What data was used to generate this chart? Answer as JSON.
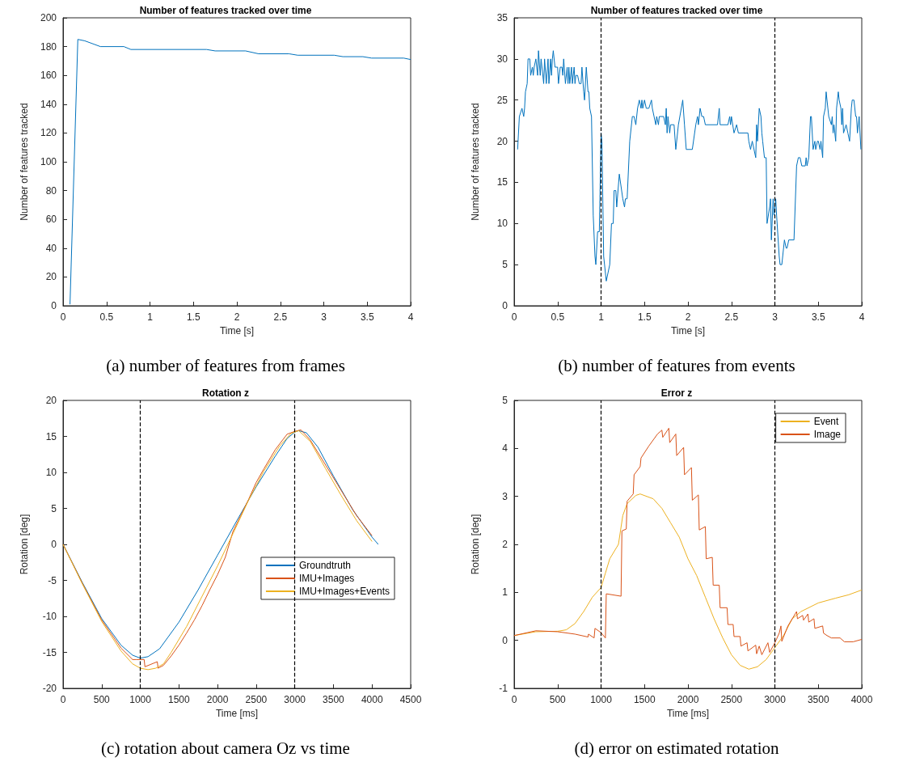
{
  "chart_data": [
    {
      "type": "line",
      "title": "Number of features tracked over time",
      "xlabel": "Time [s]",
      "ylabel": "Number of features tracked",
      "annotations": [
        "(a) number of features from frames"
      ],
      "xlim": [
        0,
        4
      ],
      "xticks": [
        0,
        0.5,
        1,
        1.5,
        2,
        2.5,
        3,
        3.5,
        4
      ],
      "ylim": [
        0,
        200
      ],
      "yticks": [
        0,
        20,
        40,
        60,
        80,
        100,
        120,
        140,
        160,
        180,
        200
      ],
      "series": [
        {
          "color": "#0072bd",
          "x": [
            0.08,
            0.17,
            0.25,
            0.43,
            0.7,
            0.78,
            1.65,
            1.75,
            2.1,
            2.25,
            2.6,
            2.7,
            3.12,
            3.22,
            3.45,
            3.55,
            3.92,
            4
          ],
          "values": [
            1,
            185,
            184,
            180,
            180,
            178,
            178,
            177,
            177,
            175,
            175,
            174,
            174,
            173,
            173,
            172,
            172,
            171
          ]
        }
      ]
    },
    {
      "type": "line",
      "title": "Number of features tracked over time",
      "xlabel": "Time [s]",
      "ylabel": "Number of features tracked",
      "annotations": [
        "(b) number of features from events"
      ],
      "xlim": [
        0,
        4
      ],
      "xticks": [
        0,
        0.5,
        1,
        1.5,
        2,
        2.5,
        3,
        3.5,
        4
      ],
      "ylim": [
        0,
        35
      ],
      "yticks": [
        0,
        5,
        10,
        15,
        20,
        25,
        30,
        35
      ],
      "ref_lines": [
        {
          "axis": "x",
          "value": 1,
          "color": "#000000",
          "line_style": "dashed"
        },
        {
          "axis": "x",
          "value": 3,
          "color": "#000000",
          "line_style": "dashed"
        }
      ],
      "series": [
        {
          "color": "#0072bd",
          "x": [
            0.04,
            0.06,
            0.09,
            0.11,
            0.12,
            0.13,
            0.15,
            0.16,
            0.18,
            0.19,
            0.21,
            0.22,
            0.23,
            0.25,
            0.27,
            0.28,
            0.3,
            0.31,
            0.34,
            0.35,
            0.37,
            0.39,
            0.4,
            0.42,
            0.43,
            0.44,
            0.45,
            0.47,
            0.5,
            0.51,
            0.53,
            0.55,
            0.56,
            0.57,
            0.59,
            0.61,
            0.62,
            0.63,
            0.64,
            0.66,
            0.67,
            0.69,
            0.7,
            0.71,
            0.73,
            0.75,
            0.77,
            0.78,
            0.8,
            0.81,
            0.83,
            0.85,
            0.86,
            0.87,
            0.89,
            0.91,
            0.93,
            0.94,
            0.96,
            0.98,
            1.0,
            1.01,
            1.03,
            1.04,
            1.06,
            1.1,
            1.12,
            1.14,
            1.15,
            1.17,
            1.18,
            1.21,
            1.25,
            1.27,
            1.28,
            1.3,
            1.33,
            1.36,
            1.38,
            1.4,
            1.42,
            1.44,
            1.46,
            1.47,
            1.48,
            1.5,
            1.52,
            1.55,
            1.58,
            1.59,
            1.61,
            1.63,
            1.64,
            1.66,
            1.67,
            1.72,
            1.74,
            1.75,
            1.76,
            1.77,
            1.79,
            1.8,
            1.84,
            1.86,
            1.89,
            1.94,
            1.96,
            1.98,
            2.05,
            2.09,
            2.11,
            2.12,
            2.14,
            2.16,
            2.18,
            2.2,
            2.34,
            2.36,
            2.37,
            2.46,
            2.48,
            2.49,
            2.5,
            2.53,
            2.56,
            2.58,
            2.69,
            2.7,
            2.72,
            2.74,
            2.78,
            2.79,
            2.8,
            2.82,
            2.84,
            2.85,
            2.86,
            2.88,
            2.9,
            2.91,
            2.94,
            2.95,
            2.96,
            2.98,
            2.99,
            3.01,
            3.02,
            3.05,
            3.06,
            3.08,
            3.11,
            3.13,
            3.14,
            3.16,
            3.22,
            3.25,
            3.27,
            3.29,
            3.31,
            3.35,
            3.36,
            3.37,
            3.39,
            3.41,
            3.42,
            3.44,
            3.46,
            3.47,
            3.49,
            3.5,
            3.52,
            3.53,
            3.55,
            3.56,
            3.58,
            3.59,
            3.61,
            3.62,
            3.65,
            3.66,
            3.67,
            3.68,
            3.7,
            3.71,
            3.73,
            3.74,
            3.76,
            3.77,
            3.78,
            3.79,
            3.82,
            3.84,
            3.86,
            3.88,
            3.89,
            3.91,
            3.93,
            3.94,
            3.95,
            3.97,
            3.99
          ],
          "values": [
            19,
            23,
            24,
            23,
            24,
            26,
            27,
            30,
            30,
            28,
            29,
            28,
            29,
            30,
            28,
            31,
            28,
            30,
            27,
            30,
            27,
            30,
            27,
            30,
            28,
            30,
            31,
            29,
            29,
            27,
            29,
            29,
            28,
            30,
            27,
            29,
            27,
            29,
            27,
            29,
            27,
            29,
            27,
            28,
            28,
            27,
            27,
            29,
            26,
            25,
            29,
            26,
            26,
            24,
            23,
            11,
            6,
            5,
            9,
            9,
            21,
            20,
            6,
            5,
            3,
            5,
            10,
            10,
            14,
            14,
            12,
            16,
            13,
            12,
            13,
            13,
            20,
            23,
            23,
            22,
            24,
            25,
            24,
            25,
            24,
            25,
            24,
            24,
            25,
            24,
            23,
            22,
            23,
            22,
            23,
            23,
            22,
            24,
            21,
            23,
            21,
            22,
            22,
            19,
            22,
            25,
            22,
            19,
            19,
            22,
            23,
            22,
            24,
            23,
            23,
            22,
            22,
            24,
            22,
            22,
            23,
            22,
            23,
            21,
            22,
            21,
            21,
            20,
            19,
            20,
            18,
            22,
            20,
            24,
            23,
            21,
            20,
            18,
            18,
            10,
            12,
            13,
            8,
            13,
            11,
            13,
            11,
            6,
            5,
            5,
            8,
            7,
            7,
            8,
            8,
            17,
            18,
            18,
            17,
            17,
            18,
            17,
            18,
            23,
            23,
            19,
            20,
            19,
            20,
            20,
            19,
            20,
            18,
            23,
            24,
            26,
            24,
            23,
            22,
            23,
            21,
            22,
            20,
            24,
            26,
            25,
            24,
            22,
            24,
            21,
            22,
            21,
            20,
            24,
            25,
            25,
            23,
            23,
            21,
            23,
            19
          ]
        }
      ]
    },
    {
      "type": "line",
      "title": "Rotation z",
      "xlabel": "Time [ms]",
      "ylabel": "Rotation [deg]",
      "annotations": [
        "(c) rotation about camera Oz vs time"
      ],
      "xlim": [
        0,
        4500
      ],
      "xticks": [
        0,
        500,
        1000,
        1500,
        2000,
        2500,
        3000,
        3500,
        4000,
        4500
      ],
      "ylim": [
        -20,
        20
      ],
      "yticks": [
        -20,
        -15,
        -10,
        -5,
        0,
        5,
        10,
        15,
        20
      ],
      "legend": "bottom right",
      "ref_lines": [
        {
          "axis": "x",
          "value": 1000,
          "color": "#000000",
          "line_style": "dashed"
        },
        {
          "axis": "x",
          "value": 3000,
          "color": "#000000",
          "line_style": "dashed"
        }
      ],
      "series": [
        {
          "name": "Groundtruth",
          "color": "#0072bd",
          "x": [
            0,
            250,
            500,
            750,
            900,
            1000,
            1100,
            1250,
            1500,
            1750,
            2000,
            2250,
            2500,
            2750,
            2900,
            3000,
            3050,
            3150,
            3300,
            3500,
            3750,
            4000,
            4080
          ],
          "values": [
            0,
            -5.3,
            -10.3,
            -14,
            -15.4,
            -15.8,
            -15.6,
            -14.5,
            -10.8,
            -6.3,
            -1.5,
            3.3,
            8,
            12.3,
            14.7,
            15.6,
            15.8,
            15.5,
            13.5,
            9.5,
            4.8,
            1,
            0
          ]
        },
        {
          "name": "IMU+Images",
          "color": "#d95319",
          "x": [
            0,
            250,
            500,
            750,
            900,
            950,
            1050,
            1060,
            1220,
            1230,
            1300,
            1400,
            1500,
            1600,
            1700,
            1800,
            1900,
            2000,
            2100,
            2200,
            2300,
            2400,
            2500,
            2600,
            2750,
            2900,
            3000,
            3080,
            3200,
            3400,
            3600,
            3800,
            4000
          ],
          "values": [
            0,
            -5.4,
            -10.5,
            -14.4,
            -16,
            -16,
            -16,
            -17,
            -16.3,
            -17.2,
            -16.8,
            -15.5,
            -14,
            -12.3,
            -10.5,
            -8.5,
            -6.3,
            -4.2,
            -1.8,
            1.8,
            4,
            6.2,
            8.6,
            10.5,
            13.2,
            15.3,
            15.7,
            15.9,
            14.5,
            11,
            7.5,
            4,
            1.2
          ]
        },
        {
          "name": "IMU+Images+Events",
          "color": "#edb120",
          "x": [
            0,
            250,
            500,
            750,
            900,
            1000,
            1100,
            1200,
            1300,
            1400,
            1600,
            1800,
            2000,
            2200,
            2400,
            2600,
            2800,
            2950,
            3050,
            3200,
            3400,
            3600,
            3800,
            4000
          ],
          "values": [
            0,
            -5.5,
            -10.7,
            -14.8,
            -16.6,
            -17.2,
            -17.4,
            -17.2,
            -16.6,
            -15,
            -11.4,
            -7.2,
            -3,
            1.5,
            6.1,
            10.2,
            13.6,
            15.4,
            15.8,
            14.3,
            10.5,
            6.8,
            3.3,
            0.4
          ]
        }
      ]
    },
    {
      "type": "line",
      "title": "Error z",
      "xlabel": "Time [ms]",
      "ylabel": "Rotation [deg]",
      "annotations": [
        "(d) error on estimated rotation"
      ],
      "xlim": [
        0,
        4000
      ],
      "xticks": [
        0,
        500,
        1000,
        1500,
        2000,
        2500,
        3000,
        3500,
        4000
      ],
      "ylim": [
        -1,
        5
      ],
      "yticks": [
        -1,
        0,
        1,
        2,
        3,
        4,
        5
      ],
      "legend": "top right",
      "ref_lines": [
        {
          "axis": "x",
          "value": 1000,
          "color": "#000000",
          "line_style": "dashed"
        },
        {
          "axis": "x",
          "value": 3000,
          "color": "#000000",
          "line_style": "dashed"
        }
      ],
      "series": [
        {
          "name": "Event",
          "color": "#edb120",
          "x": [
            0,
            250,
            500,
            600,
            700,
            800,
            900,
            1000,
            1050,
            1100,
            1200,
            1250,
            1300,
            1400,
            1450,
            1600,
            1700,
            1800,
            1900,
            2000,
            2100,
            2200,
            2300,
            2400,
            2500,
            2600,
            2700,
            2800,
            2900,
            3000,
            3100,
            3200,
            3300,
            3500,
            3700,
            3850,
            4000
          ],
          "values": [
            0.1,
            0.18,
            0.19,
            0.22,
            0.35,
            0.6,
            0.9,
            1.1,
            1.4,
            1.7,
            2,
            2.6,
            2.85,
            3.02,
            3.05,
            2.95,
            2.75,
            2.45,
            2.15,
            1.7,
            1.35,
            0.9,
            0.45,
            0.05,
            -0.3,
            -0.52,
            -0.6,
            -0.55,
            -0.4,
            -0.15,
            0.1,
            0.45,
            0.6,
            0.78,
            0.88,
            0.95,
            1.05
          ]
        },
        {
          "name": "Image",
          "color": "#d95319",
          "x": [
            0,
            250,
            500,
            700,
            850,
            855,
            920,
            930,
            1000,
            1050,
            1060,
            1230,
            1240,
            1290,
            1300,
            1370,
            1380,
            1450,
            1460,
            1550,
            1650,
            1700,
            1710,
            1780,
            1790,
            1860,
            1870,
            1950,
            1960,
            2040,
            2050,
            2120,
            2130,
            2200,
            2210,
            2280,
            2290,
            2360,
            2370,
            2450,
            2460,
            2520,
            2530,
            2600,
            2610,
            2680,
            2690,
            2780,
            2790,
            2820,
            2850,
            2920,
            2940,
            3000,
            3050,
            3070,
            3080,
            3150,
            3250,
            3260,
            3320,
            3330,
            3380,
            3390,
            3450,
            3460,
            3550,
            3560,
            3600,
            3650,
            3750,
            3800,
            3900,
            4000
          ],
          "values": [
            0.1,
            0.2,
            0.18,
            0.13,
            0.07,
            0.13,
            0.05,
            0.25,
            0.16,
            0.05,
            0.97,
            0.92,
            2.28,
            2.32,
            2.9,
            3.05,
            3.45,
            3.62,
            3.8,
            4.05,
            4.3,
            4.38,
            4.23,
            4.42,
            4.12,
            4.3,
            3.85,
            4.02,
            3.45,
            3.6,
            2.92,
            3.03,
            2.3,
            2.37,
            1.7,
            1.73,
            1.15,
            1.15,
            0.68,
            0.68,
            0.33,
            0.33,
            0.08,
            0.08,
            -0.12,
            -0.05,
            -0.22,
            -0.1,
            -0.28,
            -0.12,
            -0.3,
            -0.05,
            -0.25,
            -0.05,
            0.15,
            0.3,
            -0.02,
            0.3,
            0.6,
            0.45,
            0.52,
            0.42,
            0.55,
            0.38,
            0.45,
            0.25,
            0.3,
            0.15,
            0.1,
            0.05,
            0.05,
            -0.03,
            -0.03,
            0.02
          ]
        }
      ]
    }
  ]
}
